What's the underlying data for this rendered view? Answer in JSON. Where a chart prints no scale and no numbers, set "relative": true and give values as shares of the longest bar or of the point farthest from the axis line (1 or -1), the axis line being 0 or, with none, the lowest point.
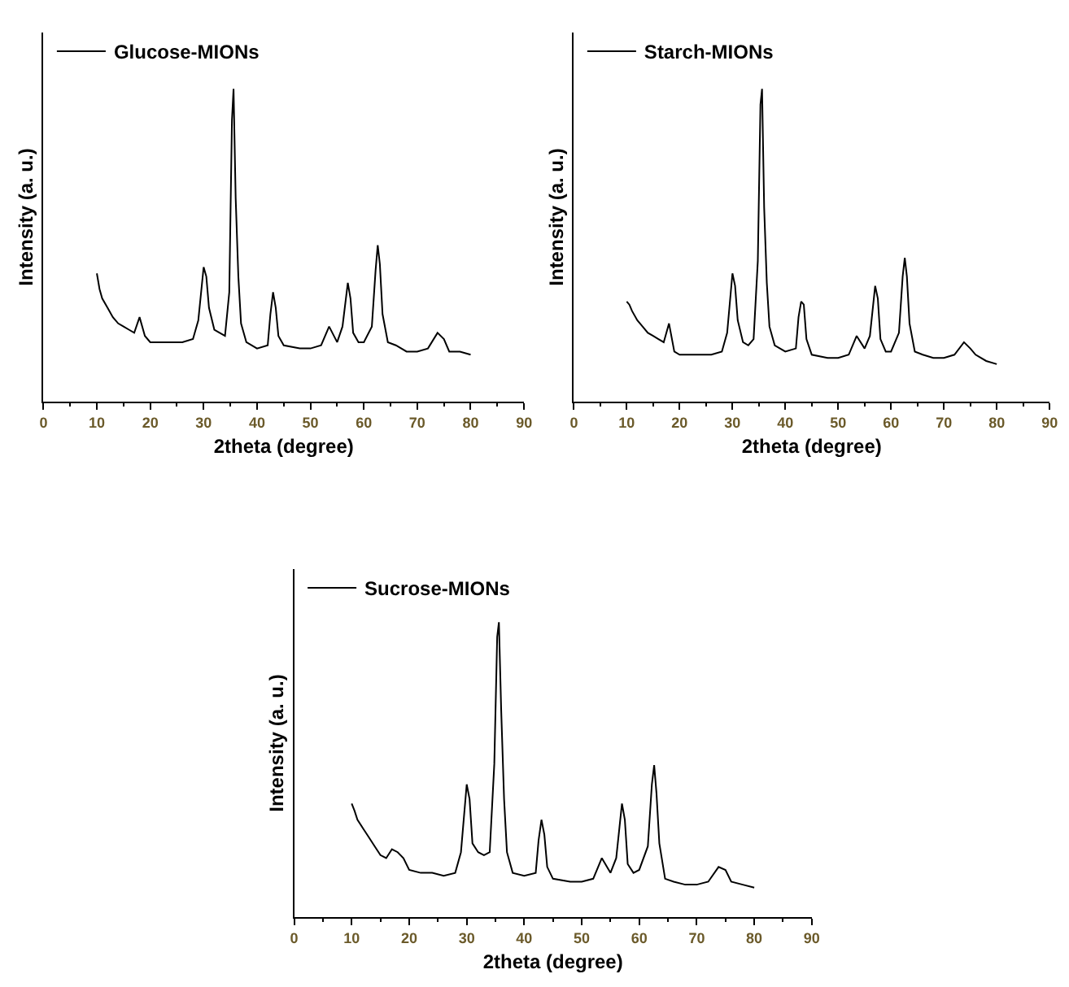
{
  "chart_data": [
    {
      "type": "line",
      "relative": true,
      "xlabel": "2theta (degree)",
      "ylabel": "Intensity (a. u.)",
      "xlim": [
        0,
        90
      ],
      "xticks": [
        0,
        10,
        20,
        30,
        40,
        50,
        60,
        70,
        80,
        90
      ],
      "legend": "top left",
      "x": [
        10,
        10.5,
        11,
        12,
        13,
        14,
        15,
        16,
        17,
        18,
        19,
        20,
        22,
        24,
        26,
        28,
        29,
        30,
        30.5,
        31,
        32,
        33,
        34,
        34.8,
        35.3,
        35.6,
        36,
        36.5,
        37,
        38,
        40,
        42,
        42.5,
        43,
        43.5,
        44,
        45,
        48,
        50,
        52,
        53.5,
        55,
        56,
        57,
        57.5,
        58,
        59,
        60,
        61.5,
        62.2,
        62.6,
        63,
        63.5,
        64.5,
        66,
        68,
        70,
        72,
        73.8,
        75,
        76,
        78,
        80
      ],
      "series": [
        {
          "name": "Glucose-MIONs",
          "color": "#000000",
          "values": [
            0.41,
            0.36,
            0.33,
            0.3,
            0.27,
            0.25,
            0.24,
            0.23,
            0.22,
            0.27,
            0.21,
            0.19,
            0.19,
            0.19,
            0.19,
            0.2,
            0.26,
            0.43,
            0.4,
            0.3,
            0.23,
            0.22,
            0.21,
            0.35,
            0.9,
            1.0,
            0.65,
            0.4,
            0.25,
            0.19,
            0.17,
            0.18,
            0.28,
            0.35,
            0.3,
            0.21,
            0.18,
            0.17,
            0.17,
            0.18,
            0.24,
            0.19,
            0.24,
            0.38,
            0.33,
            0.22,
            0.19,
            0.19,
            0.24,
            0.42,
            0.5,
            0.44,
            0.28,
            0.19,
            0.18,
            0.16,
            0.16,
            0.17,
            0.22,
            0.2,
            0.16,
            0.16,
            0.15
          ]
        }
      ]
    },
    {
      "type": "line",
      "relative": true,
      "xlabel": "2theta (degree)",
      "ylabel": "Intensity (a. u.)",
      "xlim": [
        0,
        90
      ],
      "xticks": [
        0,
        10,
        20,
        30,
        40,
        50,
        60,
        70,
        80,
        90
      ],
      "legend": "top left",
      "x": [
        10,
        10.5,
        11,
        12,
        13,
        14,
        15,
        16,
        17,
        18,
        19,
        20,
        22,
        24,
        26,
        28,
        29,
        30,
        30.5,
        31,
        32,
        33,
        34,
        34.8,
        35.3,
        35.6,
        36,
        36.5,
        37,
        38,
        40,
        42,
        42.5,
        43,
        43.5,
        44,
        45,
        48,
        50,
        52,
        53.5,
        55,
        56,
        57,
        57.5,
        58,
        59,
        60,
        61.5,
        62.2,
        62.6,
        63,
        63.5,
        64.5,
        66,
        68,
        70,
        72,
        73.8,
        75,
        76,
        78,
        80
      ],
      "series": [
        {
          "name": "Starch-MIONs",
          "color": "#000000",
          "values": [
            0.32,
            0.31,
            0.29,
            0.26,
            0.24,
            0.22,
            0.21,
            0.2,
            0.19,
            0.25,
            0.16,
            0.15,
            0.15,
            0.15,
            0.15,
            0.16,
            0.22,
            0.41,
            0.37,
            0.26,
            0.19,
            0.18,
            0.2,
            0.45,
            0.95,
            1.0,
            0.62,
            0.38,
            0.24,
            0.18,
            0.16,
            0.17,
            0.27,
            0.32,
            0.31,
            0.2,
            0.15,
            0.14,
            0.14,
            0.15,
            0.21,
            0.17,
            0.21,
            0.37,
            0.33,
            0.2,
            0.16,
            0.16,
            0.22,
            0.4,
            0.46,
            0.4,
            0.25,
            0.16,
            0.15,
            0.14,
            0.14,
            0.15,
            0.19,
            0.17,
            0.15,
            0.13,
            0.12
          ]
        }
      ]
    },
    {
      "type": "line",
      "relative": true,
      "xlabel": "2theta (degree)",
      "ylabel": "Intensity (a. u.)",
      "xlim": [
        0,
        90
      ],
      "xticks": [
        0,
        10,
        20,
        30,
        40,
        50,
        60,
        70,
        80,
        90
      ],
      "legend": "top left",
      "x": [
        10,
        10.5,
        11,
        12,
        13,
        14,
        15,
        16,
        17,
        18,
        19,
        20,
        22,
        24,
        26,
        28,
        29,
        30,
        30.5,
        31,
        32,
        33,
        34,
        34.8,
        35.3,
        35.6,
        36,
        36.5,
        37,
        38,
        40,
        42,
        42.5,
        43,
        43.5,
        44,
        45,
        48,
        50,
        52,
        53.5,
        55,
        56,
        57,
        57.5,
        58,
        59,
        60,
        61.5,
        62.2,
        62.6,
        63,
        63.5,
        64.5,
        66,
        68,
        70,
        72,
        73.8,
        75,
        76,
        78,
        80
      ],
      "series": [
        {
          "name": "Sucrose-MIONs",
          "color": "#000000",
          "values": [
            0.385,
            0.36,
            0.33,
            0.3,
            0.27,
            0.24,
            0.21,
            0.2,
            0.23,
            0.22,
            0.2,
            0.16,
            0.15,
            0.15,
            0.14,
            0.15,
            0.22,
            0.45,
            0.4,
            0.25,
            0.22,
            0.21,
            0.22,
            0.52,
            0.95,
            1.0,
            0.7,
            0.4,
            0.22,
            0.15,
            0.14,
            0.15,
            0.26,
            0.33,
            0.28,
            0.17,
            0.13,
            0.12,
            0.12,
            0.13,
            0.2,
            0.15,
            0.2,
            0.385,
            0.33,
            0.18,
            0.15,
            0.16,
            0.24,
            0.45,
            0.515,
            0.42,
            0.25,
            0.13,
            0.12,
            0.11,
            0.11,
            0.12,
            0.17,
            0.16,
            0.12,
            0.11,
            0.1
          ]
        }
      ]
    }
  ]
}
